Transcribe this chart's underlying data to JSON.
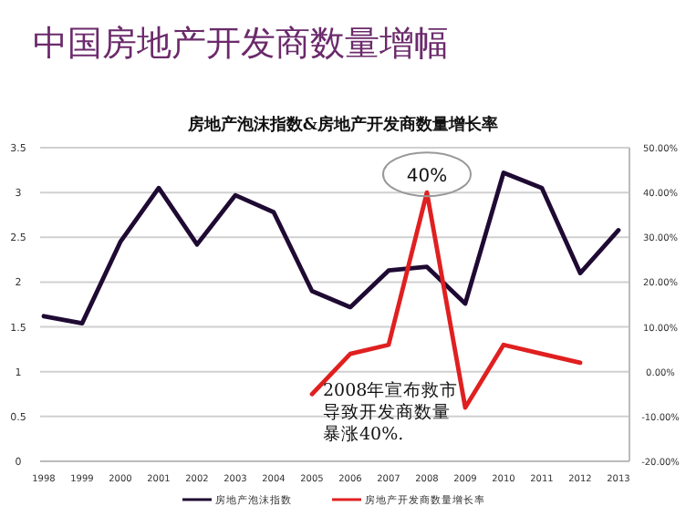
{
  "chart_data": {
    "type": "line",
    "title": "中国房地产开发商数量增幅",
    "subtitle": "房地产泡沫指数&房地产开发商数量增长率",
    "categories": [
      "1998",
      "1999",
      "2000",
      "2001",
      "2002",
      "2003",
      "2004",
      "2005",
      "2006",
      "2007",
      "2008",
      "2009",
      "2010",
      "2011",
      "2012",
      "2013"
    ],
    "series": [
      {
        "name": "房地产泡沫指数",
        "color": "#1f0a33",
        "values": [
          1.62,
          1.54,
          2.45,
          3.05,
          2.42,
          2.97,
          2.78,
          1.9,
          1.72,
          2.13,
          2.17,
          1.76,
          3.22,
          3.05,
          2.1,
          2.58
        ]
      },
      {
        "name": "房地产开发商数量增长率",
        "color": "#e02020",
        "axis": "y2",
        "values": [
          null,
          null,
          null,
          null,
          null,
          null,
          null,
          -5,
          4,
          6,
          40,
          -8,
          6,
          4,
          2,
          null
        ]
      }
    ],
    "ylim": [
      0,
      3.5
    ],
    "yticks": [
      0,
      0.5,
      1,
      1.5,
      2,
      2.5,
      3,
      3.5
    ],
    "y2lim": [
      -20,
      50
    ],
    "y2ticks": [
      {
        "value": -20,
        "label": "-20.00%"
      },
      {
        "value": -10,
        "label": "-10.00%"
      },
      {
        "value": 0,
        "label": "0.00%"
      },
      {
        "value": 10,
        "label": "10.00%"
      },
      {
        "value": 20,
        "label": "20.00%"
      },
      {
        "value": 30,
        "label": "30.00%"
      },
      {
        "value": 40,
        "label": "40.00%"
      },
      {
        "value": 50,
        "label": "50.00%"
      }
    ],
    "grid": "y",
    "legend": "bottom",
    "marker": "none",
    "line_style": "solid",
    "annotations": [
      "40%",
      "2008年宣布救市导致开发商数量暴涨40%."
    ]
  }
}
